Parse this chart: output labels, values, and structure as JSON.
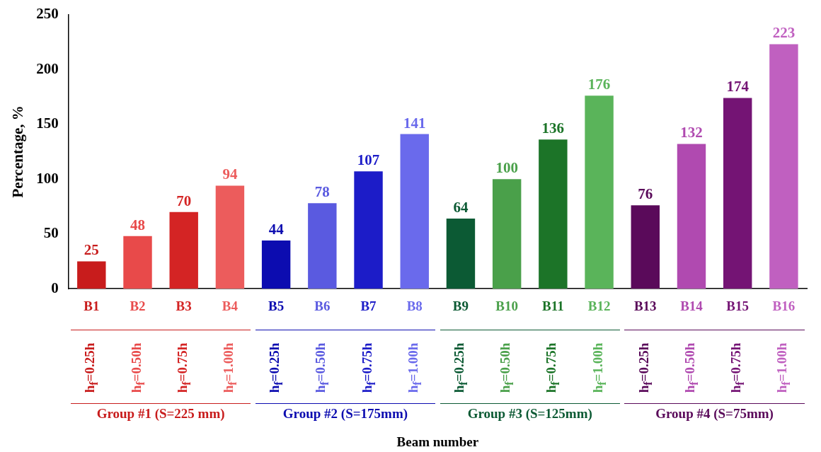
{
  "chart_data": {
    "type": "bar",
    "ylabel": "Percentage, %",
    "categories": [
      "B1",
      "B2",
      "B3",
      "B4",
      "B5",
      "B6",
      "B7",
      "B8",
      "B9",
      "B10",
      "B11",
      "B12",
      "B13",
      "B14",
      "B15",
      "B16"
    ],
    "values": [
      25,
      48,
      70,
      94,
      44,
      78,
      107,
      141,
      64,
      100,
      136,
      176,
      76,
      132,
      174,
      223
    ],
    "colors": [
      "#c81c1c",
      "#e84a4a",
      "#d42424",
      "#ec5c5c",
      "#0c0cb0",
      "#5a5ae0",
      "#1c1cc8",
      "#6a6aec",
      "#0c5a34",
      "#4aa04a",
      "#1c7428",
      "#5ab45a",
      "#5a0a5a",
      "#b04ab0",
      "#741474",
      "#c060c0"
    ],
    "ylim": [
      0,
      250
    ],
    "yticks": [
      0,
      50,
      100,
      150,
      200,
      250
    ],
    "grid": false,
    "data_labels": true,
    "annotations": [
      "h$_{f}$=0.25h",
      "h$_{f}$=0.50h",
      "h$_{f}$=0.75h",
      "h$_{f}$=1.00h",
      "h$_{f}$=0.25h",
      "h$_{f}$=0.50h",
      "h$_{f}$=0.75h",
      "h$_{f}$=1.00h",
      "h$_{f}$=0.25h",
      "h$_{f}$=0.50h",
      "h$_{f}$=0.75h",
      "h$_{f}$=1.00h",
      "h$_{f}$=0.25h",
      "h$_{f}$=0.50h",
      "h$_{f}$=0.75h",
      "h$_{f}$=1.00h",
      "Group #1 (S=225 mm)",
      "Group #2 (S=175mm)",
      "Group #3 (S=125mm)",
      "Group #4 (S=75mm)",
      {
        "text": "Beam number"
      }
    ]
  }
}
